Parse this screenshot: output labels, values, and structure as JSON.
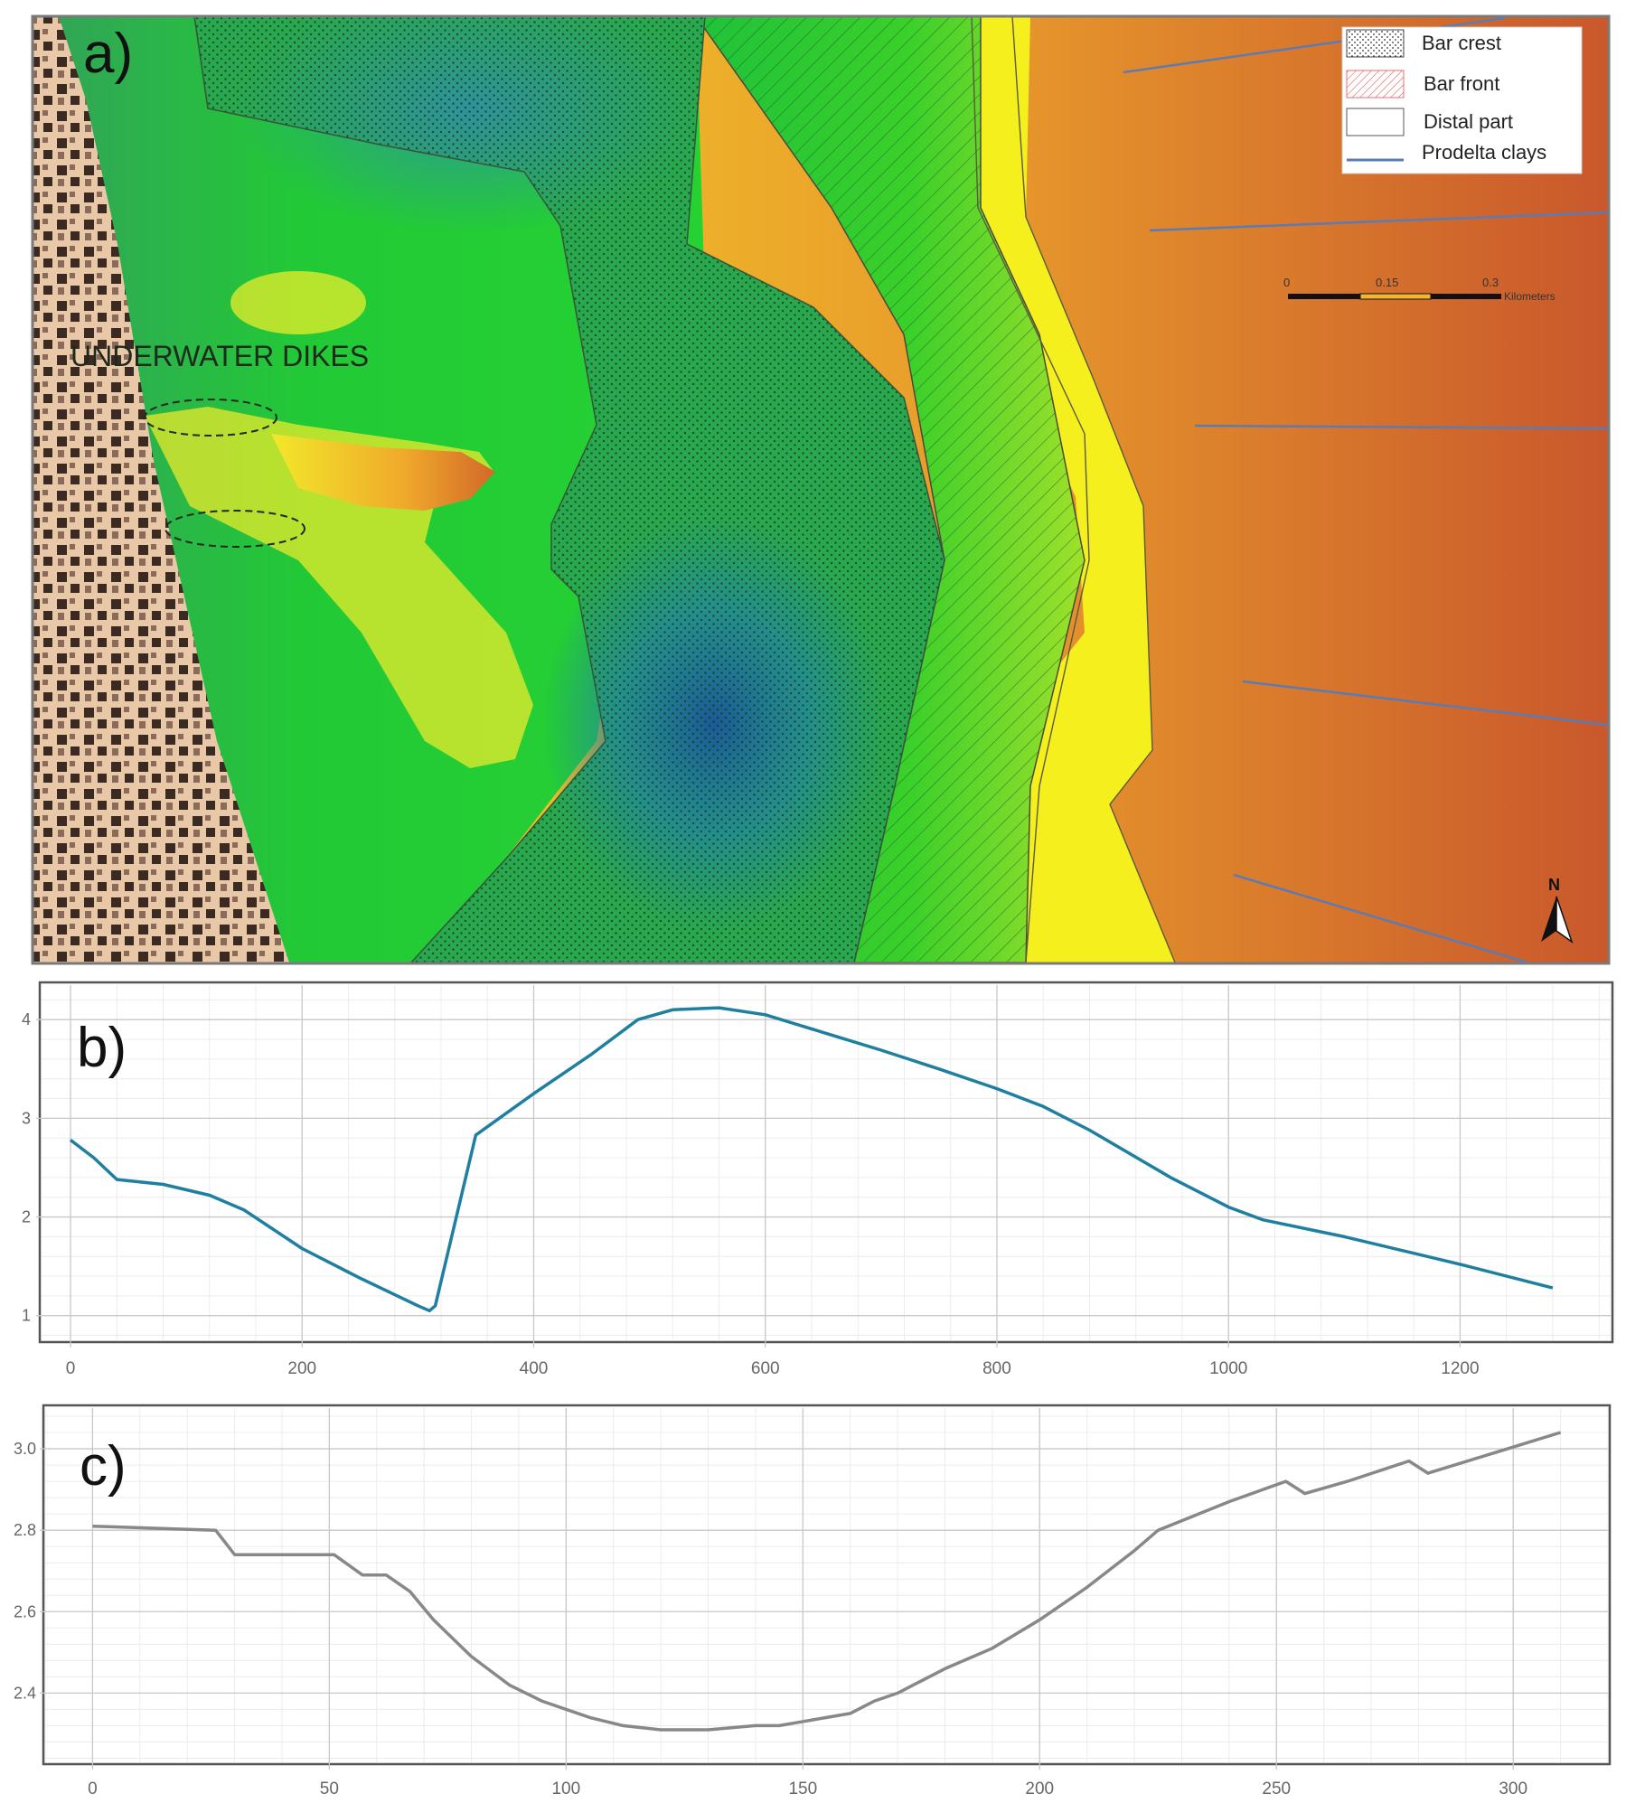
{
  "panels": {
    "a": {
      "label": "a)",
      "annotation": "UNDERWATER DIKES",
      "legend": [
        {
          "label": "Bar crest",
          "swatch": "dotted"
        },
        {
          "label": "Bar front",
          "swatch": "red-hatch"
        },
        {
          "label": "Distal part",
          "swatch": "empty"
        },
        {
          "label": "Prodelta clays",
          "swatch": "blue-line"
        }
      ],
      "scale_bar": {
        "ticks": [
          "0",
          "0.15",
          "0.3"
        ],
        "unit": "Kilometers"
      },
      "north_arrow": "N",
      "colors": {
        "deep": "#1f5f9a",
        "mid": "#1fcc2f",
        "high": "#f2f21a",
        "peak": "#c8522a",
        "prodelta_line": "#5b7bb5"
      }
    }
  },
  "chart_data": [
    {
      "panel": "b)",
      "type": "line",
      "title": "",
      "xlabel": "",
      "ylabel": "",
      "xlim": [
        -25,
        1330
      ],
      "ylim": [
        0.75,
        4.35
      ],
      "xticks": [
        0,
        200,
        400,
        600,
        800,
        1000,
        1200
      ],
      "yticks": [
        1,
        2,
        3,
        4
      ],
      "grid": true,
      "color": "#1f7fa0",
      "series": [
        {
          "x": [
            0,
            20,
            40,
            80,
            120,
            150,
            200,
            250,
            300,
            310,
            315,
            350,
            400,
            450,
            490,
            520,
            560,
            600,
            650,
            700,
            750,
            800,
            840,
            880,
            950,
            1000,
            1030,
            1100,
            1200,
            1280
          ],
          "y": [
            2.78,
            2.6,
            2.38,
            2.33,
            2.22,
            2.07,
            1.68,
            1.38,
            1.1,
            1.05,
            1.1,
            2.83,
            3.25,
            3.65,
            4.0,
            4.1,
            4.12,
            4.05,
            3.87,
            3.69,
            3.5,
            3.3,
            3.12,
            2.88,
            2.4,
            2.1,
            1.97,
            1.8,
            1.52,
            1.28
          ]
        }
      ]
    },
    {
      "panel": "c)",
      "type": "line",
      "title": "",
      "xlabel": "",
      "ylabel": "",
      "xlim": [
        -10,
        320
      ],
      "ylim": [
        2.23,
        3.1
      ],
      "xticks": [
        0,
        50,
        100,
        150,
        200,
        250,
        300
      ],
      "yticks": [
        2.4,
        2.6,
        2.8,
        3.0
      ],
      "ytick_labels": [
        "2.4",
        "2.6",
        "2.8",
        "3.0"
      ],
      "grid": true,
      "color": "#888888",
      "series": [
        {
          "x": [
            0,
            26,
            30,
            51,
            57,
            62,
            67,
            72,
            80,
            88,
            95,
            105,
            112,
            120,
            130,
            140,
            145,
            155,
            160,
            165,
            170,
            180,
            190,
            200,
            210,
            220,
            225,
            240,
            252,
            256,
            265,
            278,
            282,
            310
          ],
          "y": [
            2.81,
            2.8,
            2.74,
            2.74,
            2.69,
            2.69,
            2.65,
            2.58,
            2.49,
            2.42,
            2.38,
            2.34,
            2.32,
            2.31,
            2.31,
            2.32,
            2.32,
            2.34,
            2.35,
            2.38,
            2.4,
            2.46,
            2.51,
            2.58,
            2.66,
            2.75,
            2.8,
            2.87,
            2.92,
            2.89,
            2.92,
            2.97,
            2.94,
            3.04
          ]
        }
      ]
    }
  ]
}
